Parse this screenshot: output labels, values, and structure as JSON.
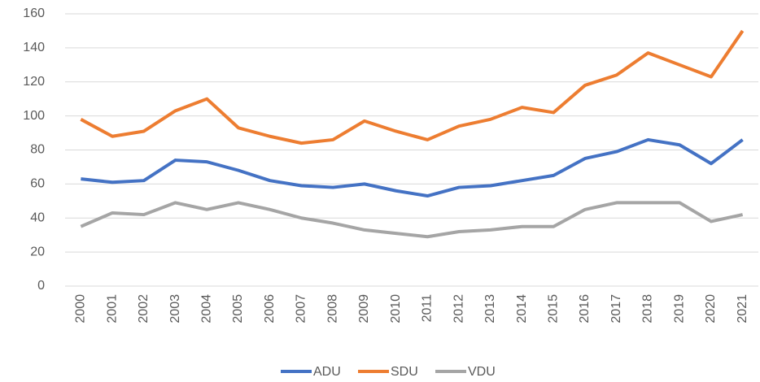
{
  "chart_data": {
    "type": "line",
    "categories": [
      "2000",
      "2001",
      "2002",
      "2003",
      "2004",
      "2005",
      "2006",
      "2007",
      "2008",
      "2009",
      "2010",
      "2011",
      "2012",
      "2013",
      "2014",
      "2015",
      "2016",
      "2017",
      "2018",
      "2019",
      "2020",
      "2021"
    ],
    "series": [
      {
        "name": "ADU",
        "color": "#4472c4",
        "values": [
          63,
          61,
          62,
          74,
          73,
          68,
          62,
          59,
          58,
          60,
          56,
          53,
          58,
          59,
          62,
          65,
          75,
          79,
          86,
          83,
          72,
          86
        ]
      },
      {
        "name": "SDU",
        "color": "#ed7d31",
        "values": [
          98,
          88,
          91,
          103,
          110,
          93,
          88,
          84,
          86,
          97,
          91,
          86,
          94,
          98,
          105,
          102,
          118,
          124,
          137,
          130,
          123,
          150
        ]
      },
      {
        "name": "VDU",
        "color": "#a5a5a5",
        "values": [
          35,
          43,
          42,
          49,
          45,
          49,
          45,
          40,
          37,
          33,
          31,
          29,
          32,
          33,
          35,
          35,
          45,
          49,
          49,
          49,
          38,
          42
        ]
      }
    ],
    "ylim": [
      0,
      160
    ],
    "yticks": [
      0,
      20,
      40,
      60,
      80,
      100,
      120,
      140,
      160
    ],
    "grid": true,
    "legend": "bottom"
  }
}
